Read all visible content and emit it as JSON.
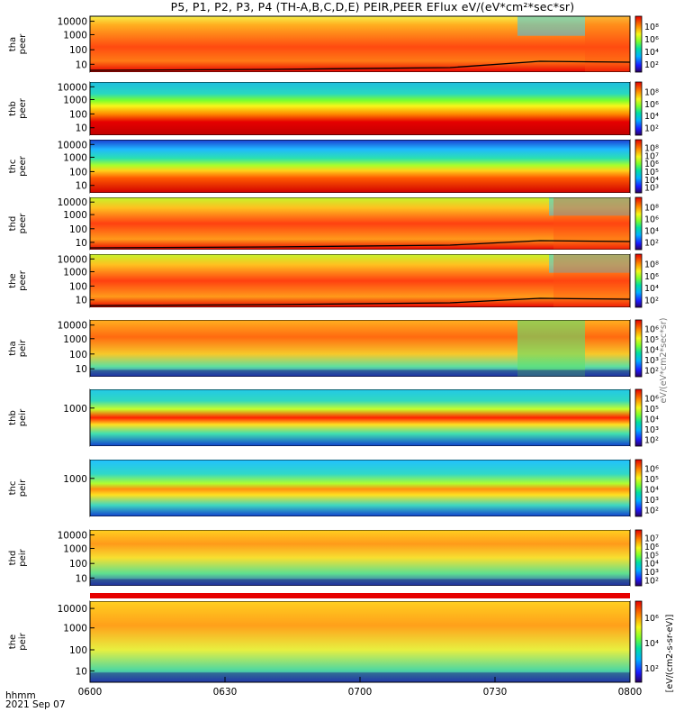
{
  "title": "P5, P1, P2, P3, P4 (TH-A,B,C,D,E) PEIR,PEER EFlux eV/(eV*cm²*sec*sr)",
  "footer": {
    "time_label": "hhmm",
    "date": "2021 Sep 07"
  },
  "chart_data": {
    "type": "heatmap",
    "x_ticks": [
      "0600",
      "0630",
      "0700",
      "0730",
      "0800"
    ],
    "x_range": [
      "06:00",
      "08:00"
    ],
    "x_unit": "hhmm",
    "date": "2021 Sep 07",
    "y_scale": "log",
    "colorbar_unit_label": "[eV/(cm2-s-sr-eV)]",
    "colorbar_unit_label_faint": "eV/(eV*cm2*sec*sr)",
    "panels": [
      {
        "probe": "tha",
        "species": "peer",
        "ylabel_top": "tha",
        "ylabel_bottom": "peer",
        "yticks": [
          "10",
          "100",
          "1000",
          "10000"
        ],
        "cbar_ticks": [
          "10²",
          "10⁴",
          "10⁶",
          "10⁸"
        ],
        "spacecraft_potential_line": true
      },
      {
        "probe": "thb",
        "species": "peer",
        "ylabel_top": "thb",
        "ylabel_bottom": "peer",
        "yticks": [
          "10",
          "100",
          "1000",
          "10000"
        ],
        "cbar_ticks": [
          "10²",
          "10⁴",
          "10⁶",
          "10⁸"
        ],
        "spacecraft_potential_line": false
      },
      {
        "probe": "thc",
        "species": "peer",
        "ylabel_top": "thc",
        "ylabel_bottom": "peer",
        "yticks": [
          "10",
          "100",
          "1000",
          "10000"
        ],
        "cbar_ticks": [
          "10³",
          "10⁴",
          "10⁵",
          "10⁶",
          "10⁷",
          "10⁸"
        ],
        "spacecraft_potential_line": false
      },
      {
        "probe": "thd",
        "species": "peer",
        "ylabel_top": "thd",
        "ylabel_bottom": "peer",
        "yticks": [
          "10",
          "100",
          "1000",
          "10000"
        ],
        "cbar_ticks": [
          "10²",
          "10⁴",
          "10⁶",
          "10⁸"
        ],
        "spacecraft_potential_line": true
      },
      {
        "probe": "the",
        "species": "peer",
        "ylabel_top": "the",
        "ylabel_bottom": "peer",
        "yticks": [
          "10",
          "100",
          "1000",
          "10000"
        ],
        "cbar_ticks": [
          "10²",
          "10⁴",
          "10⁶",
          "10⁸"
        ],
        "spacecraft_potential_line": true
      },
      {
        "probe": "tha",
        "species": "peir",
        "ylabel_top": "tha",
        "ylabel_bottom": "peir",
        "yticks": [
          "10",
          "100",
          "1000",
          "10000"
        ],
        "cbar_ticks": [
          "10²",
          "10³",
          "10⁴",
          "10⁵",
          "10⁶"
        ],
        "spacecraft_potential_line": false
      },
      {
        "probe": "thb",
        "species": "peir",
        "ylabel_top": "thb",
        "ylabel_bottom": "peir",
        "yticks": [
          "1000"
        ],
        "cbar_ticks": [
          "10²",
          "10³",
          "10⁴",
          "10⁵",
          "10⁶"
        ],
        "spacecraft_potential_line": false
      },
      {
        "probe": "thc",
        "species": "peir",
        "ylabel_top": "thc",
        "ylabel_bottom": "peir",
        "yticks": [
          "1000"
        ],
        "cbar_ticks": [
          "10²",
          "10³",
          "10⁴",
          "10⁵",
          "10⁶"
        ],
        "spacecraft_potential_line": false
      },
      {
        "probe": "thd",
        "species": "peir",
        "ylabel_top": "thd",
        "ylabel_bottom": "peir",
        "yticks": [
          "10",
          "100",
          "1000",
          "10000"
        ],
        "cbar_ticks": [
          "10²",
          "10³",
          "10⁴",
          "10⁵",
          "10⁶",
          "10⁷"
        ],
        "spacecraft_potential_line": false
      },
      {
        "probe": "the",
        "species": "peir",
        "ylabel_top": "the",
        "ylabel_bottom": "peir",
        "yticks": [
          "10",
          "100",
          "1000",
          "10000"
        ],
        "cbar_ticks": [
          "10²",
          "10⁴",
          "10⁶"
        ],
        "spacecraft_potential_line": false
      }
    ]
  }
}
